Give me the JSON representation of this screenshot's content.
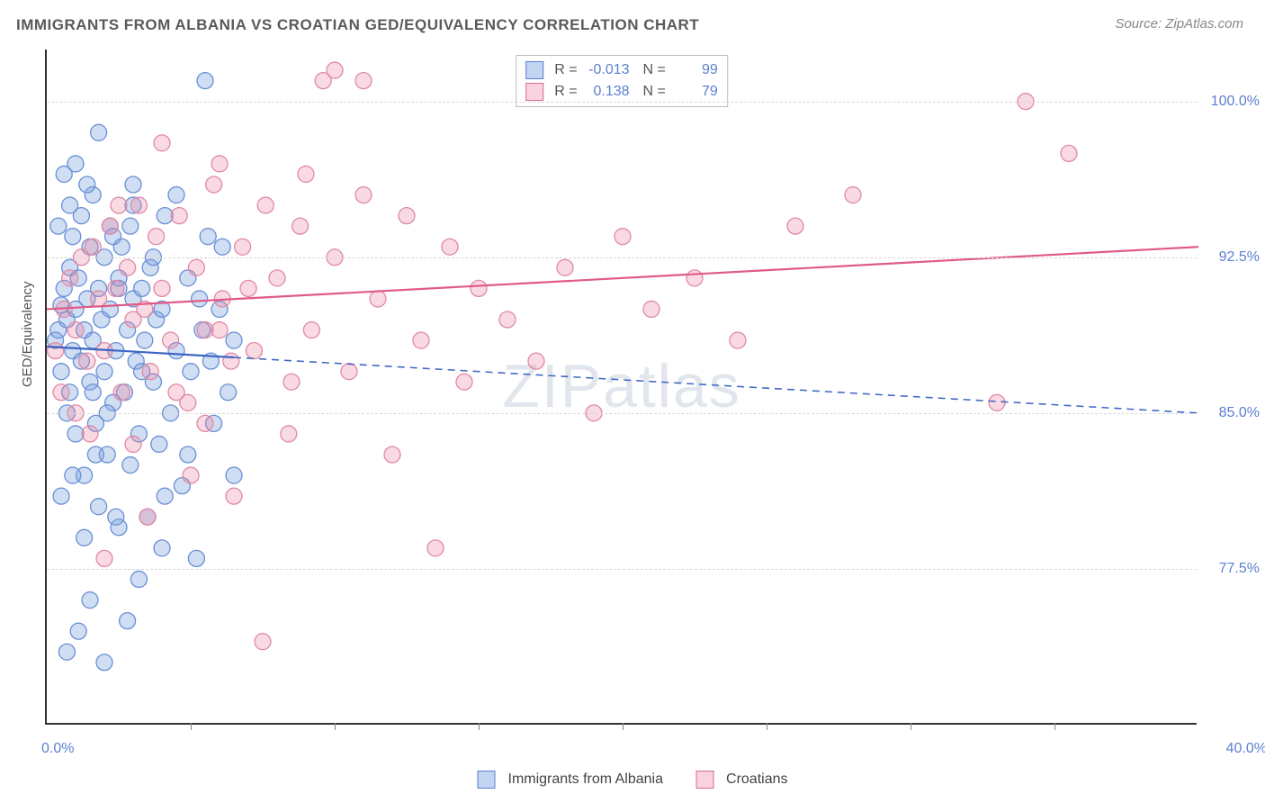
{
  "title": "IMMIGRANTS FROM ALBANIA VS CROATIAN GED/EQUIVALENCY CORRELATION CHART",
  "source": "Source: ZipAtlas.com",
  "watermark": "ZIPatlas",
  "y_axis_title": "GED/Equivalency",
  "chart": {
    "type": "scatter",
    "background_color": "#ffffff",
    "grid_color": "#d8d8d8",
    "axis_color": "#333333",
    "xlim": [
      0,
      40
    ],
    "ylim": [
      70,
      102.5
    ],
    "x_range_labels": [
      {
        "pct": 0.0,
        "text": "0.0%"
      },
      {
        "pct": 40.0,
        "text": "40.0%"
      }
    ],
    "x_ticks_pct": [
      5,
      10,
      15,
      20,
      25,
      30,
      35
    ],
    "y_grid": [
      {
        "pct": 77.5,
        "label": "77.5%"
      },
      {
        "pct": 85.0,
        "label": "85.0%"
      },
      {
        "pct": 92.5,
        "label": "92.5%"
      },
      {
        "pct": 100.0,
        "label": "100.0%"
      }
    ],
    "marker_radius": 9,
    "marker_stroke_width": 1.3,
    "trend_line_width": 2.2,
    "series": [
      {
        "name": "Immigrants from Albania",
        "fill": "rgba(120,160,220,0.35)",
        "stroke": "#6a8fd6",
        "line_color": "#3d66c4",
        "r": -0.013,
        "n": 99,
        "trend": {
          "y_at_x0": 88.2,
          "y_at_x40": 85.0,
          "solid_until_x": 6.5
        },
        "points": [
          [
            0.3,
            88.5
          ],
          [
            0.4,
            89.0
          ],
          [
            0.5,
            90.2
          ],
          [
            0.5,
            87.0
          ],
          [
            0.6,
            91.0
          ],
          [
            0.7,
            89.5
          ],
          [
            0.7,
            85.0
          ],
          [
            0.8,
            92.0
          ],
          [
            0.8,
            86.0
          ],
          [
            0.9,
            88.0
          ],
          [
            0.9,
            93.5
          ],
          [
            1.0,
            90.0
          ],
          [
            1.0,
            84.0
          ],
          [
            1.1,
            91.5
          ],
          [
            1.2,
            87.5
          ],
          [
            1.2,
            94.5
          ],
          [
            1.3,
            89.0
          ],
          [
            1.3,
            82.0
          ],
          [
            1.4,
            90.5
          ],
          [
            1.5,
            93.0
          ],
          [
            1.5,
            86.5
          ],
          [
            1.6,
            88.5
          ],
          [
            1.6,
            95.5
          ],
          [
            1.7,
            84.5
          ],
          [
            1.8,
            91.0
          ],
          [
            1.8,
            80.5
          ],
          [
            1.9,
            89.5
          ],
          [
            2.0,
            92.5
          ],
          [
            2.0,
            87.0
          ],
          [
            2.1,
            83.0
          ],
          [
            2.2,
            90.0
          ],
          [
            2.2,
            94.0
          ],
          [
            2.3,
            85.5
          ],
          [
            2.4,
            88.0
          ],
          [
            2.5,
            91.5
          ],
          [
            2.5,
            79.5
          ],
          [
            2.6,
            93.0
          ],
          [
            2.7,
            86.0
          ],
          [
            2.8,
            89.0
          ],
          [
            2.9,
            82.5
          ],
          [
            3.0,
            90.5
          ],
          [
            3.0,
            95.0
          ],
          [
            3.1,
            87.5
          ],
          [
            3.2,
            84.0
          ],
          [
            3.3,
            91.0
          ],
          [
            3.4,
            88.5
          ],
          [
            3.5,
            80.0
          ],
          [
            3.6,
            92.0
          ],
          [
            3.7,
            86.5
          ],
          [
            3.8,
            89.5
          ],
          [
            3.9,
            83.5
          ],
          [
            4.0,
            90.0
          ],
          [
            4.1,
            94.5
          ],
          [
            4.3,
            85.0
          ],
          [
            4.5,
            88.0
          ],
          [
            4.7,
            81.5
          ],
          [
            4.9,
            91.5
          ],
          [
            5.0,
            87.0
          ],
          [
            5.2,
            78.0
          ],
          [
            5.4,
            89.0
          ],
          [
            5.6,
            93.5
          ],
          [
            5.8,
            84.5
          ],
          [
            6.0,
            90.0
          ],
          [
            6.3,
            86.0
          ],
          [
            6.5,
            88.5
          ],
          [
            2.0,
            73.0
          ],
          [
            3.2,
            77.0
          ],
          [
            4.0,
            78.5
          ],
          [
            1.5,
            76.0
          ],
          [
            2.8,
            75.0
          ],
          [
            0.6,
            96.5
          ],
          [
            1.0,
            97.0
          ],
          [
            0.8,
            95.0
          ],
          [
            1.4,
            96.0
          ],
          [
            0.4,
            94.0
          ],
          [
            5.5,
            101.0
          ],
          [
            1.8,
            98.5
          ],
          [
            0.7,
            73.5
          ],
          [
            1.1,
            74.5
          ],
          [
            2.3,
            93.5
          ],
          [
            0.5,
            81.0
          ],
          [
            0.9,
            82.0
          ],
          [
            1.3,
            79.0
          ],
          [
            1.7,
            83.0
          ],
          [
            2.1,
            85.0
          ],
          [
            2.5,
            91.0
          ],
          [
            2.9,
            94.0
          ],
          [
            3.3,
            87.0
          ],
          [
            3.7,
            92.5
          ],
          [
            4.1,
            81.0
          ],
          [
            4.5,
            95.5
          ],
          [
            4.9,
            83.0
          ],
          [
            5.3,
            90.5
          ],
          [
            5.7,
            87.5
          ],
          [
            6.1,
            93.0
          ],
          [
            6.5,
            82.0
          ],
          [
            1.6,
            86.0
          ],
          [
            2.4,
            80.0
          ],
          [
            3.0,
            96.0
          ]
        ]
      },
      {
        "name": "Croatians",
        "fill": "rgba(235,130,160,0.30)",
        "stroke": "#e08aa5",
        "line_color": "#e05a87",
        "r": 0.138,
        "n": 79,
        "trend": {
          "y_at_x0": 90.0,
          "y_at_x40": 93.0,
          "solid_until_x": 40
        },
        "points": [
          [
            0.6,
            90.0
          ],
          [
            0.8,
            91.5
          ],
          [
            1.0,
            89.0
          ],
          [
            1.2,
            92.5
          ],
          [
            1.4,
            87.5
          ],
          [
            1.6,
            93.0
          ],
          [
            1.8,
            90.5
          ],
          [
            2.0,
            88.0
          ],
          [
            2.2,
            94.0
          ],
          [
            2.4,
            91.0
          ],
          [
            2.6,
            86.0
          ],
          [
            2.8,
            92.0
          ],
          [
            3.0,
            89.5
          ],
          [
            3.2,
            95.0
          ],
          [
            3.4,
            90.0
          ],
          [
            3.6,
            87.0
          ],
          [
            3.8,
            93.5
          ],
          [
            4.0,
            91.0
          ],
          [
            4.3,
            88.5
          ],
          [
            4.6,
            94.5
          ],
          [
            4.9,
            85.5
          ],
          [
            5.2,
            92.0
          ],
          [
            5.5,
            89.0
          ],
          [
            5.8,
            96.0
          ],
          [
            6.1,
            90.5
          ],
          [
            6.4,
            87.5
          ],
          [
            6.8,
            93.0
          ],
          [
            7.2,
            88.0
          ],
          [
            7.6,
            95.0
          ],
          [
            8.0,
            91.5
          ],
          [
            8.4,
            84.0
          ],
          [
            8.8,
            94.0
          ],
          [
            9.2,
            89.0
          ],
          [
            9.6,
            101.0
          ],
          [
            10.0,
            92.5
          ],
          [
            10.0,
            101.5
          ],
          [
            10.5,
            87.0
          ],
          [
            11.0,
            95.5
          ],
          [
            11.5,
            90.5
          ],
          [
            12.0,
            83.0
          ],
          [
            12.5,
            94.5
          ],
          [
            13.0,
            88.5
          ],
          [
            13.5,
            78.5
          ],
          [
            14.0,
            93.0
          ],
          [
            14.5,
            86.5
          ],
          [
            15.0,
            91.0
          ],
          [
            16.0,
            89.5
          ],
          [
            17.0,
            87.5
          ],
          [
            18.0,
            92.0
          ],
          [
            19.0,
            85.0
          ],
          [
            20.0,
            93.5
          ],
          [
            21.0,
            90.0
          ],
          [
            22.5,
            91.5
          ],
          [
            24.0,
            88.5
          ],
          [
            26.0,
            94.0
          ],
          [
            28.0,
            95.5
          ],
          [
            33.0,
            85.5
          ],
          [
            34.0,
            100.0
          ],
          [
            35.5,
            97.5
          ],
          [
            2.0,
            78.0
          ],
          [
            3.5,
            80.0
          ],
          [
            5.0,
            82.0
          ],
          [
            7.5,
            74.0
          ],
          [
            6.5,
            81.0
          ],
          [
            1.5,
            84.0
          ],
          [
            4.0,
            98.0
          ],
          [
            6.0,
            97.0
          ],
          [
            9.0,
            96.5
          ],
          [
            1.0,
            85.0
          ],
          [
            0.5,
            86.0
          ],
          [
            2.5,
            95.0
          ],
          [
            3.0,
            83.5
          ],
          [
            4.5,
            86.0
          ],
          [
            5.5,
            84.5
          ],
          [
            6.0,
            89.0
          ],
          [
            7.0,
            91.0
          ],
          [
            8.5,
            86.5
          ],
          [
            11.0,
            101.0
          ],
          [
            0.3,
            88.0
          ]
        ]
      }
    ]
  },
  "legend": {
    "series1_label": "Immigrants from Albania",
    "series2_label": "Croatians"
  }
}
